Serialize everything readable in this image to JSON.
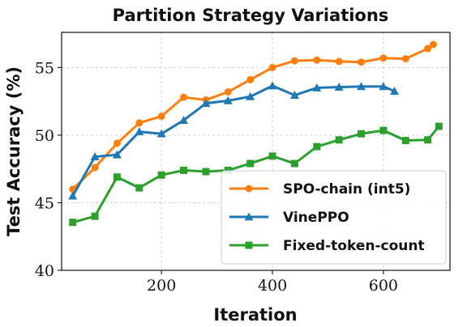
{
  "chart_data": {
    "type": "line",
    "title": "Partition Strategy Variations",
    "xlabel": "Iteration",
    "ylabel": "Test Accuracy (%)",
    "xlim": [
      20,
      720
    ],
    "ylim": [
      40,
      57.6
    ],
    "xticks": [
      200,
      400,
      600
    ],
    "yticks": [
      40,
      45,
      50,
      55
    ],
    "grid": true,
    "legend_position": "lower-right",
    "series": [
      {
        "name": "SPO-chain (int5)",
        "color": "#ff7f0e",
        "marker": "circle",
        "x": [
          40,
          80,
          120,
          160,
          200,
          240,
          280,
          320,
          360,
          400,
          440,
          480,
          520,
          560,
          600,
          640,
          680,
          690
        ],
        "y": [
          46.0,
          47.6,
          49.4,
          50.9,
          51.4,
          52.8,
          52.6,
          53.2,
          54.1,
          55.0,
          55.5,
          55.55,
          55.45,
          55.4,
          55.7,
          55.65,
          56.4,
          56.7
        ]
      },
      {
        "name": "VinePPO",
        "color": "#1f77b4",
        "marker": "triangle",
        "x": [
          40,
          80,
          120,
          160,
          200,
          240,
          280,
          320,
          360,
          400,
          440,
          480,
          520,
          560,
          600,
          620
        ],
        "y": [
          45.5,
          48.4,
          48.55,
          50.25,
          50.1,
          51.1,
          52.35,
          52.55,
          52.85,
          53.65,
          52.95,
          53.5,
          53.55,
          53.6,
          53.6,
          53.25
        ]
      },
      {
        "name": "Fixed-token-count",
        "color": "#2ca02c",
        "marker": "square",
        "x": [
          40,
          80,
          120,
          160,
          200,
          240,
          280,
          320,
          360,
          400,
          440,
          480,
          520,
          560,
          600,
          640,
          680,
          700
        ],
        "y": [
          43.55,
          44.0,
          46.9,
          46.1,
          47.05,
          47.4,
          47.3,
          47.4,
          47.9,
          48.45,
          47.9,
          49.15,
          49.65,
          50.1,
          50.35,
          49.6,
          49.65,
          50.65
        ]
      }
    ]
  }
}
